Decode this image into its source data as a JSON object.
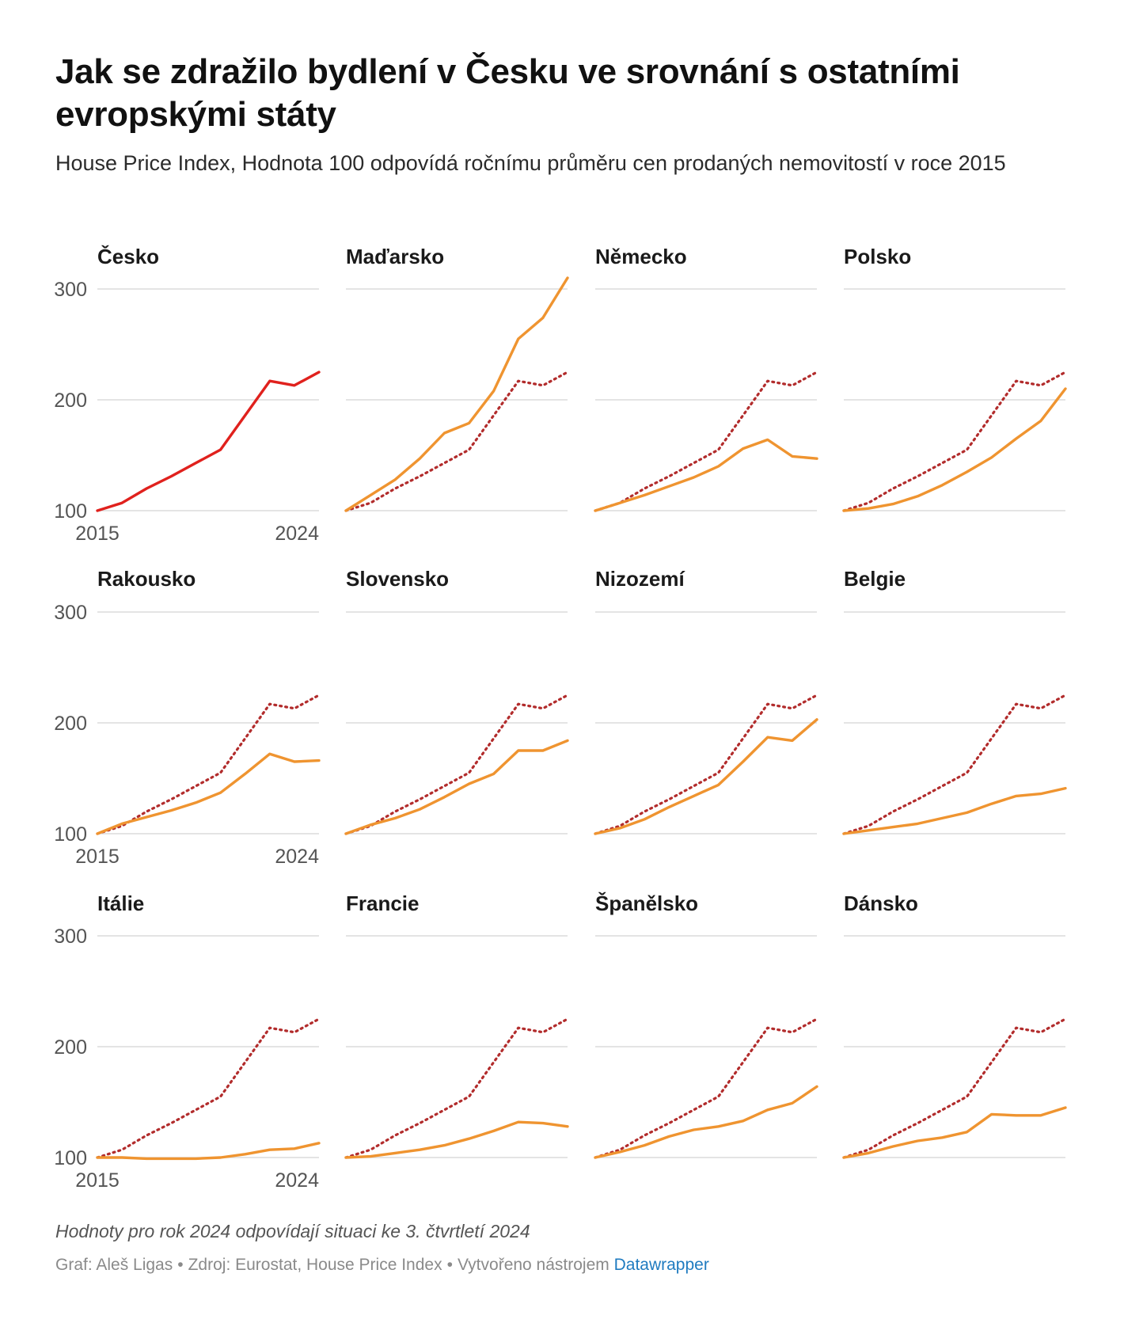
{
  "title": "Jak se zdražilo bydlení v Česku ve srovnání s ostatními evropskými státy",
  "subtitle": "House Price Index, Hodnota 100 odpovídá ročnímu průměru cen prodaných nemovitostí v roce 2015",
  "notes": "Hodnoty pro rok 2024 odpovídají situaci ke 3. čtvrtletí 2024",
  "credits": {
    "graph": "Graf: Aleš Ligas",
    "source": "Zdroj: Eurostat, House Price Index",
    "tool": "Vytvořeno nástrojem",
    "tool_link": "Datawrapper"
  },
  "colors": {
    "czech": "#e0211d",
    "country": "#ef9430",
    "reference_dotted": "#b22c2c",
    "grid": "#dcdcdc",
    "tick": "#555555"
  },
  "chart_data": {
    "type": "line",
    "layout": "small-multiples",
    "x": [
      2015,
      2016,
      2017,
      2018,
      2019,
      2020,
      2021,
      2022,
      2023,
      2024
    ],
    "x_tick_labels": [
      "2015",
      "2024"
    ],
    "y_ticks": [
      100,
      200,
      300
    ],
    "ylim": [
      100,
      300
    ],
    "reference_series": "Česko",
    "panels": [
      {
        "name": "Česko",
        "values": [
          100,
          107,
          120,
          131,
          143,
          155,
          186,
          217,
          213,
          225
        ]
      },
      {
        "name": "Maďarsko",
        "values": [
          100,
          114,
          128,
          147,
          170,
          179,
          208,
          255,
          274,
          310
        ]
      },
      {
        "name": "Německo",
        "values": [
          100,
          107,
          114,
          122,
          130,
          140,
          156,
          164,
          149,
          147
        ]
      },
      {
        "name": "Polsko",
        "values": [
          100,
          102,
          106,
          113,
          123,
          135,
          148,
          165,
          181,
          210
        ]
      },
      {
        "name": "Rakousko",
        "values": [
          100,
          109,
          115,
          121,
          128,
          137,
          154,
          172,
          165,
          166
        ]
      },
      {
        "name": "Slovensko",
        "values": [
          100,
          108,
          114,
          122,
          133,
          145,
          154,
          175,
          175,
          184
        ]
      },
      {
        "name": "Nizozemí",
        "values": [
          100,
          105,
          113,
          124,
          134,
          144,
          165,
          187,
          184,
          203
        ]
      },
      {
        "name": "Belgie",
        "values": [
          100,
          103,
          106,
          109,
          114,
          119,
          127,
          134,
          136,
          141
        ]
      },
      {
        "name": "Itálie",
        "values": [
          100,
          100,
          99,
          99,
          99,
          100,
          103,
          107,
          108,
          113
        ]
      },
      {
        "name": "Francie",
        "values": [
          100,
          101,
          104,
          107,
          111,
          117,
          124,
          132,
          131,
          128
        ]
      },
      {
        "name": "Španělsko",
        "values": [
          100,
          105,
          111,
          119,
          125,
          128,
          133,
          143,
          149,
          164
        ]
      },
      {
        "name": "Dánsko",
        "values": [
          100,
          104,
          110,
          115,
          118,
          123,
          139,
          138,
          138,
          145
        ]
      }
    ]
  }
}
